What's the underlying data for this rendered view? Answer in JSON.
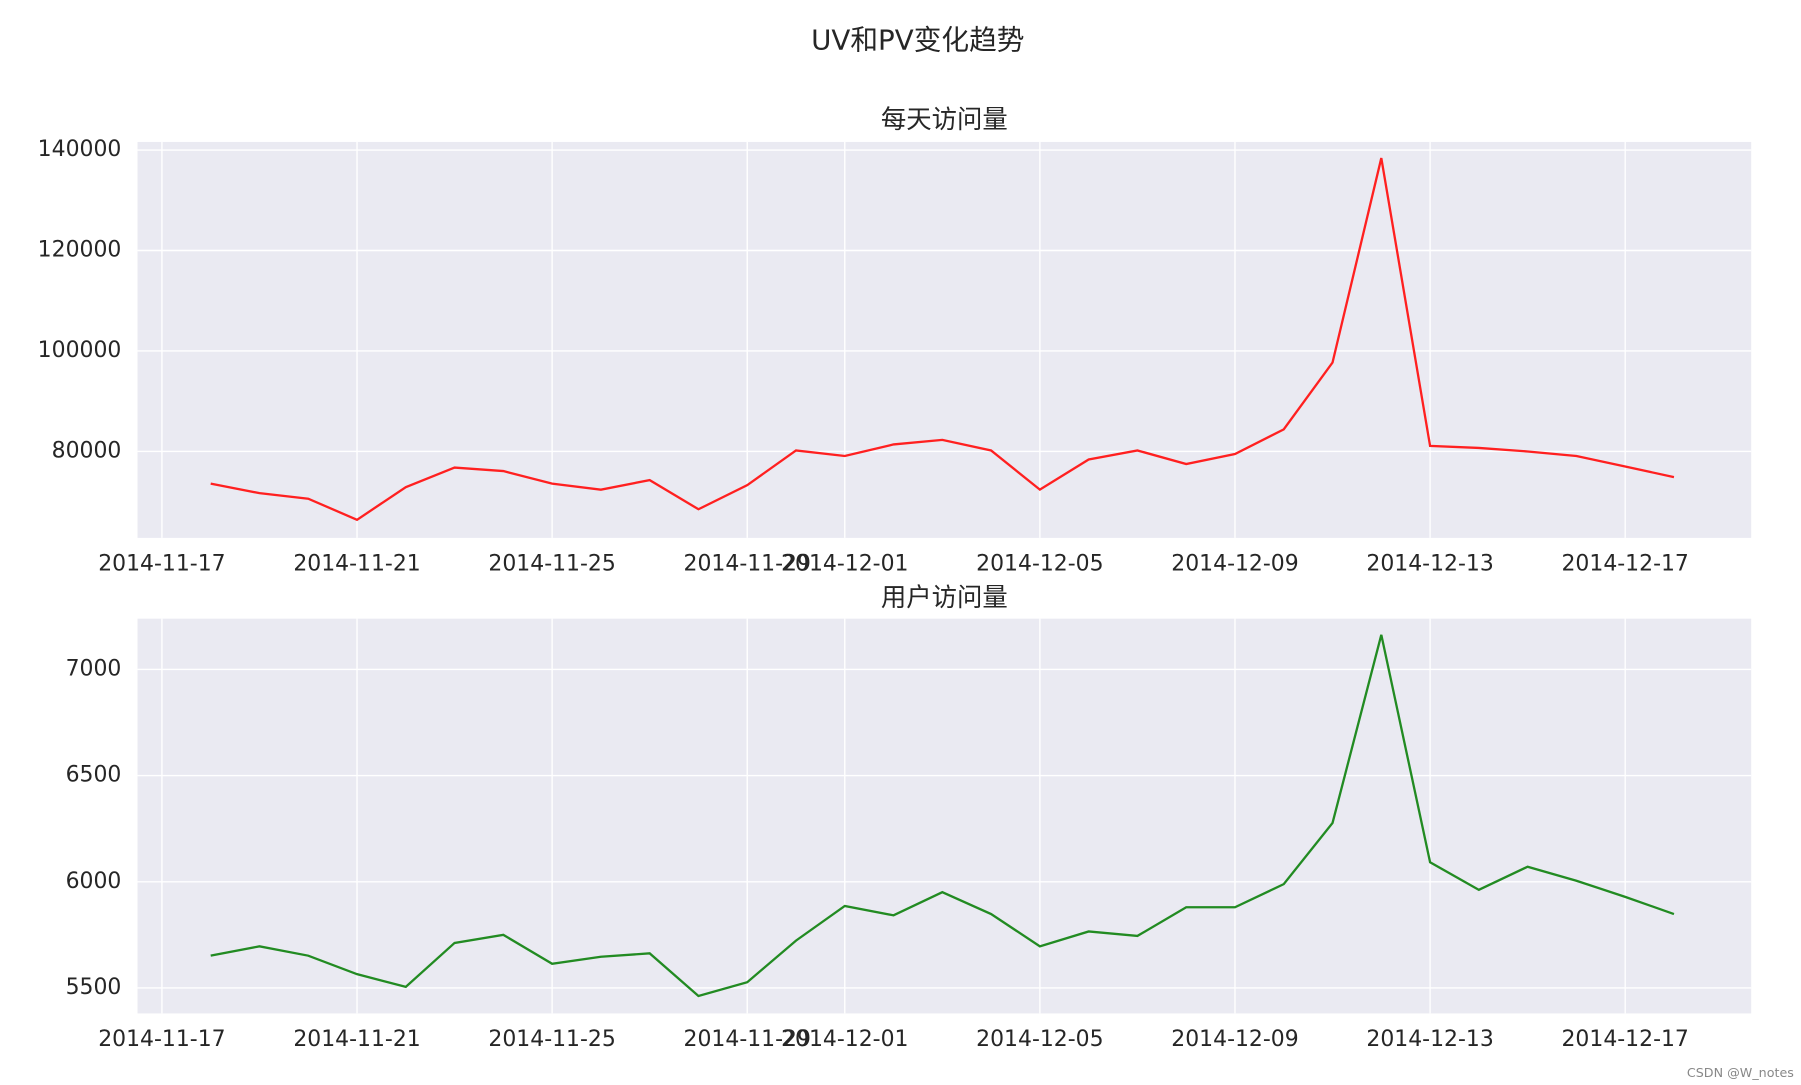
{
  "title": "UV和PV变化趋势",
  "watermark": "CSDN @W_notes",
  "chart_data": [
    {
      "type": "line",
      "title": "每天访问量",
      "x": [
        "2014-11-18",
        "2014-11-19",
        "2014-11-20",
        "2014-11-21",
        "2014-11-22",
        "2014-11-23",
        "2014-11-24",
        "2014-11-25",
        "2014-11-26",
        "2014-11-27",
        "2014-11-28",
        "2014-11-29",
        "2014-11-30",
        "2014-12-01",
        "2014-12-02",
        "2014-12-03",
        "2014-12-04",
        "2014-12-05",
        "2014-12-06",
        "2014-12-07",
        "2014-12-08",
        "2014-12-09",
        "2014-12-10",
        "2014-12-11",
        "2014-12-12",
        "2014-12-13",
        "2014-12-14",
        "2014-12-15",
        "2014-12-16",
        "2014-12-17",
        "2014-12-18"
      ],
      "values": [
        73600,
        71700,
        70600,
        66400,
        72900,
        76800,
        76100,
        73600,
        72400,
        74300,
        68500,
        73300,
        80200,
        79100,
        81400,
        82300,
        80200,
        72400,
        78400,
        80200,
        77500,
        79500,
        84400,
        97700,
        138400,
        81100,
        80700,
        80000,
        79100,
        77000,
        74900
      ],
      "color": "#ff2020",
      "xlim": [
        "2014-11-16 12:00",
        "2014-12-19 14:00"
      ],
      "xticks": [
        "2014-11-17",
        "2014-11-21",
        "2014-11-25",
        "2014-11-29",
        "2014-12-01",
        "2014-12-05",
        "2014-12-09",
        "2014-12-13",
        "2014-12-17"
      ],
      "ylim": [
        62800,
        141600
      ],
      "yticks": [
        80000,
        100000,
        120000,
        140000
      ],
      "grid": true
    },
    {
      "type": "line",
      "title": "用户访问量",
      "x": [
        "2014-11-18",
        "2014-11-19",
        "2014-11-20",
        "2014-11-21",
        "2014-11-22",
        "2014-11-23",
        "2014-11-24",
        "2014-11-25",
        "2014-11-26",
        "2014-11-27",
        "2014-11-28",
        "2014-11-29",
        "2014-11-30",
        "2014-12-01",
        "2014-12-02",
        "2014-12-03",
        "2014-12-04",
        "2014-12-05",
        "2014-12-06",
        "2014-12-07",
        "2014-12-08",
        "2014-12-09",
        "2014-12-10",
        "2014-12-11",
        "2014-12-12",
        "2014-12-13",
        "2014-12-14",
        "2014-12-15",
        "2014-12-16",
        "2014-12-17",
        "2014-12-18"
      ],
      "values": [
        5652,
        5696,
        5652,
        5565,
        5505,
        5712,
        5750,
        5614,
        5647,
        5663,
        5462,
        5527,
        5723,
        5886,
        5842,
        5951,
        5848,
        5696,
        5766,
        5745,
        5880,
        5880,
        5989,
        6277,
        7163,
        6092,
        5962,
        6071,
        6005,
        5929,
        5848
      ],
      "color": "#228b22",
      "xlim": [
        "2014-11-16 12:00",
        "2014-12-19 14:00"
      ],
      "xticks": [
        "2014-11-17",
        "2014-11-21",
        "2014-11-25",
        "2014-11-29",
        "2014-12-01",
        "2014-12-05",
        "2014-12-09",
        "2014-12-13",
        "2014-12-17"
      ],
      "ylim": [
        5380,
        7239
      ],
      "yticks": [
        5500,
        6000,
        6500,
        7000
      ],
      "grid": true
    }
  ]
}
